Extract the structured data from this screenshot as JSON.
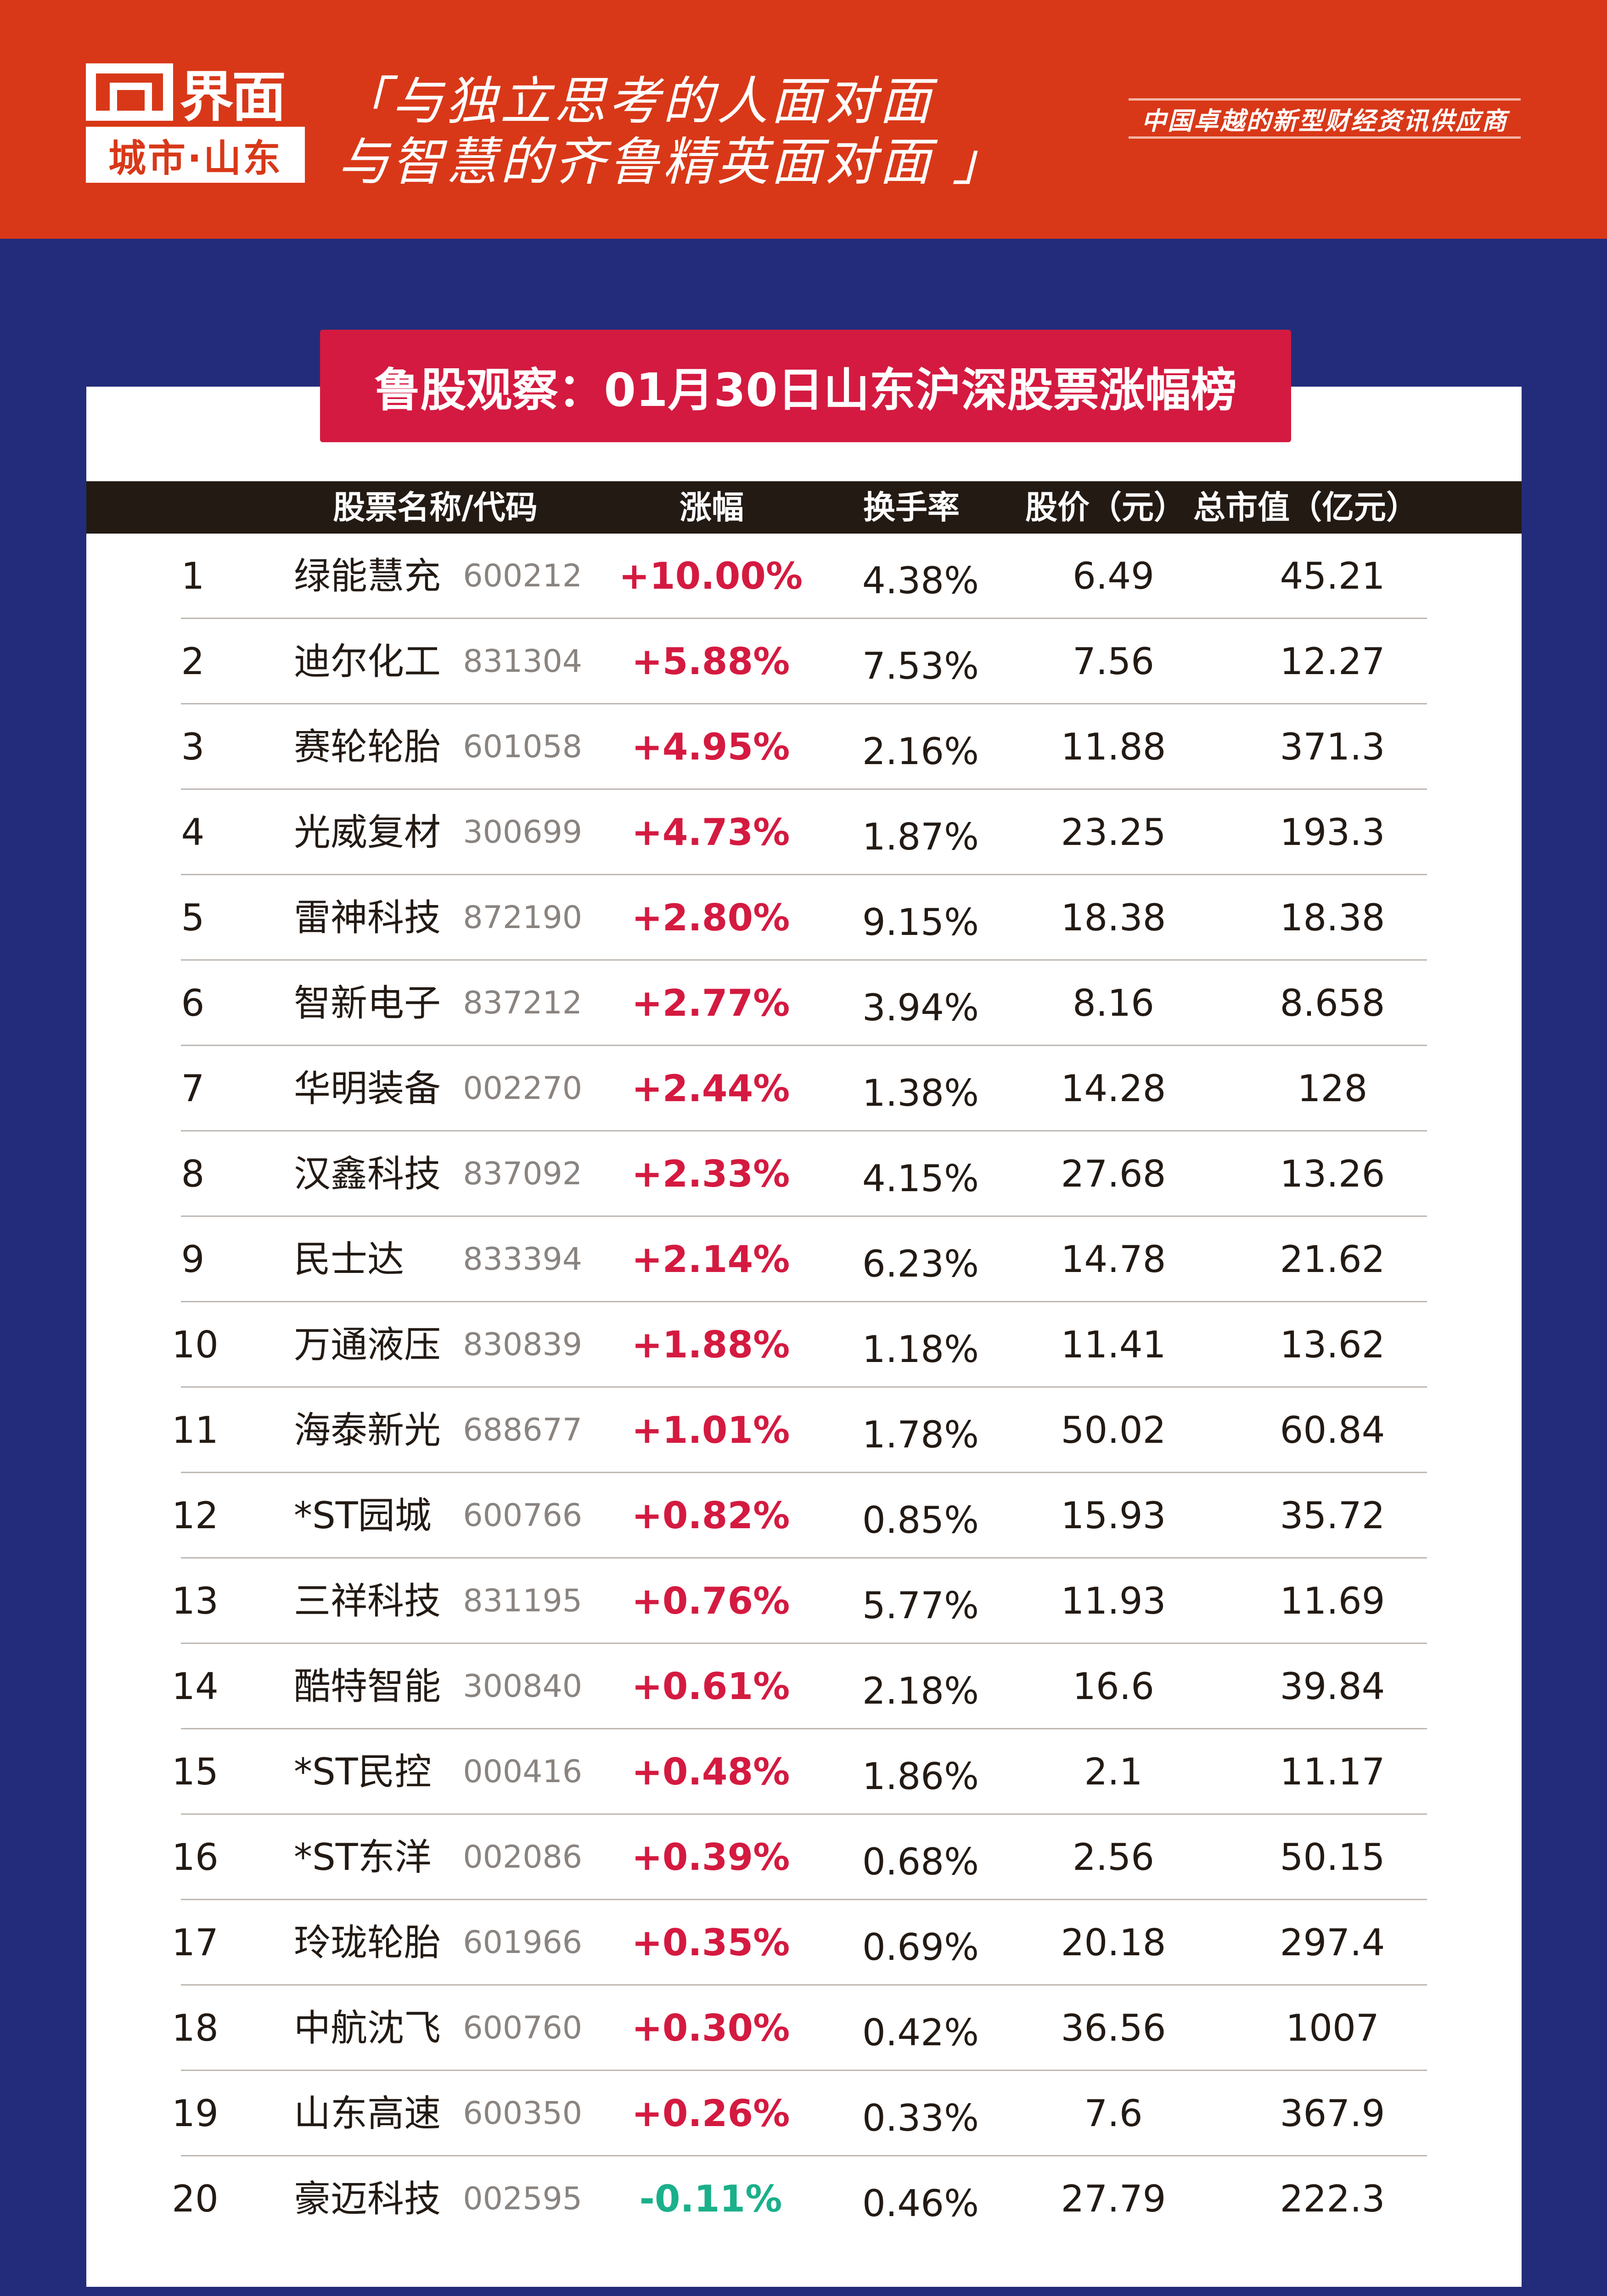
{
  "header": {
    "logo_text": "界面",
    "logo_sub": "城市·山东",
    "slogan_line1": "「与独立思考的人面对面",
    "slogan_line2": "与智慧的齐鲁精英面对面 」",
    "tagline": "中国卓越的新型财经资讯供应商"
  },
  "title": "鲁股观察：01月30日山东沪深股票涨幅榜",
  "columns": [
    "股票名称/代码",
    "涨幅",
    "换手率",
    "股价（元）",
    "总市值（亿元）"
  ],
  "colors": {
    "up": "#d41a40",
    "down": "#1ab08a",
    "header_bg": "#d83818",
    "page_bg": "#232c7a"
  },
  "rows": [
    {
      "rank": "1",
      "name": "绿能慧充",
      "code": "600212",
      "change": "+10.00%",
      "turnover": "4.38%",
      "price": "6.49",
      "cap": "45.21"
    },
    {
      "rank": "2",
      "name": "迪尔化工",
      "code": "831304",
      "change": "+5.88%",
      "turnover": "7.53%",
      "price": "7.56",
      "cap": "12.27"
    },
    {
      "rank": "3",
      "name": "赛轮轮胎",
      "code": "601058",
      "change": "+4.95%",
      "turnover": "2.16%",
      "price": "11.88",
      "cap": "371.3"
    },
    {
      "rank": "4",
      "name": "光威复材",
      "code": "300699",
      "change": "+4.73%",
      "turnover": "1.87%",
      "price": "23.25",
      "cap": "193.3"
    },
    {
      "rank": "5",
      "name": "雷神科技",
      "code": "872190",
      "change": "+2.80%",
      "turnover": "9.15%",
      "price": "18.38",
      "cap": "18.38"
    },
    {
      "rank": "6",
      "name": "智新电子",
      "code": "837212",
      "change": "+2.77%",
      "turnover": "3.94%",
      "price": "8.16",
      "cap": "8.658"
    },
    {
      "rank": "7",
      "name": "华明装备",
      "code": "002270",
      "change": "+2.44%",
      "turnover": "1.38%",
      "price": "14.28",
      "cap": "128"
    },
    {
      "rank": "8",
      "name": "汉鑫科技",
      "code": "837092",
      "change": "+2.33%",
      "turnover": "4.15%",
      "price": "27.68",
      "cap": "13.26"
    },
    {
      "rank": "9",
      "name": "民士达",
      "code": "833394",
      "change": "+2.14%",
      "turnover": "6.23%",
      "price": "14.78",
      "cap": "21.62"
    },
    {
      "rank": "10",
      "name": "万通液压",
      "code": "830839",
      "change": "+1.88%",
      "turnover": "1.18%",
      "price": "11.41",
      "cap": "13.62"
    },
    {
      "rank": "11",
      "name": "海泰新光",
      "code": "688677",
      "change": "+1.01%",
      "turnover": "1.78%",
      "price": "50.02",
      "cap": "60.84"
    },
    {
      "rank": "12",
      "name": "*ST园城",
      "code": "600766",
      "change": "+0.82%",
      "turnover": "0.85%",
      "price": "15.93",
      "cap": "35.72"
    },
    {
      "rank": "13",
      "name": "三祥科技",
      "code": "831195",
      "change": "+0.76%",
      "turnover": "5.77%",
      "price": "11.93",
      "cap": "11.69"
    },
    {
      "rank": "14",
      "name": "酷特智能",
      "code": "300840",
      "change": "+0.61%",
      "turnover": "2.18%",
      "price": "16.6",
      "cap": "39.84"
    },
    {
      "rank": "15",
      "name": "*ST民控",
      "code": "000416",
      "change": "+0.48%",
      "turnover": "1.86%",
      "price": "2.1",
      "cap": "11.17"
    },
    {
      "rank": "16",
      "name": "*ST东洋",
      "code": "002086",
      "change": "+0.39%",
      "turnover": "0.68%",
      "price": "2.56",
      "cap": "50.15"
    },
    {
      "rank": "17",
      "name": "玲珑轮胎",
      "code": "601966",
      "change": "+0.35%",
      "turnover": "0.69%",
      "price": "20.18",
      "cap": "297.4"
    },
    {
      "rank": "18",
      "name": "中航沈飞",
      "code": "600760",
      "change": "+0.30%",
      "turnover": "0.42%",
      "price": "36.56",
      "cap": "1007"
    },
    {
      "rank": "19",
      "name": "山东高速",
      "code": "600350",
      "change": "+0.26%",
      "turnover": "0.33%",
      "price": "7.6",
      "cap": "367.9"
    },
    {
      "rank": "20",
      "name": "豪迈科技",
      "code": "002595",
      "change": "-0.11%",
      "turnover": "0.46%",
      "price": "27.79",
      "cap": "222.3"
    }
  ]
}
